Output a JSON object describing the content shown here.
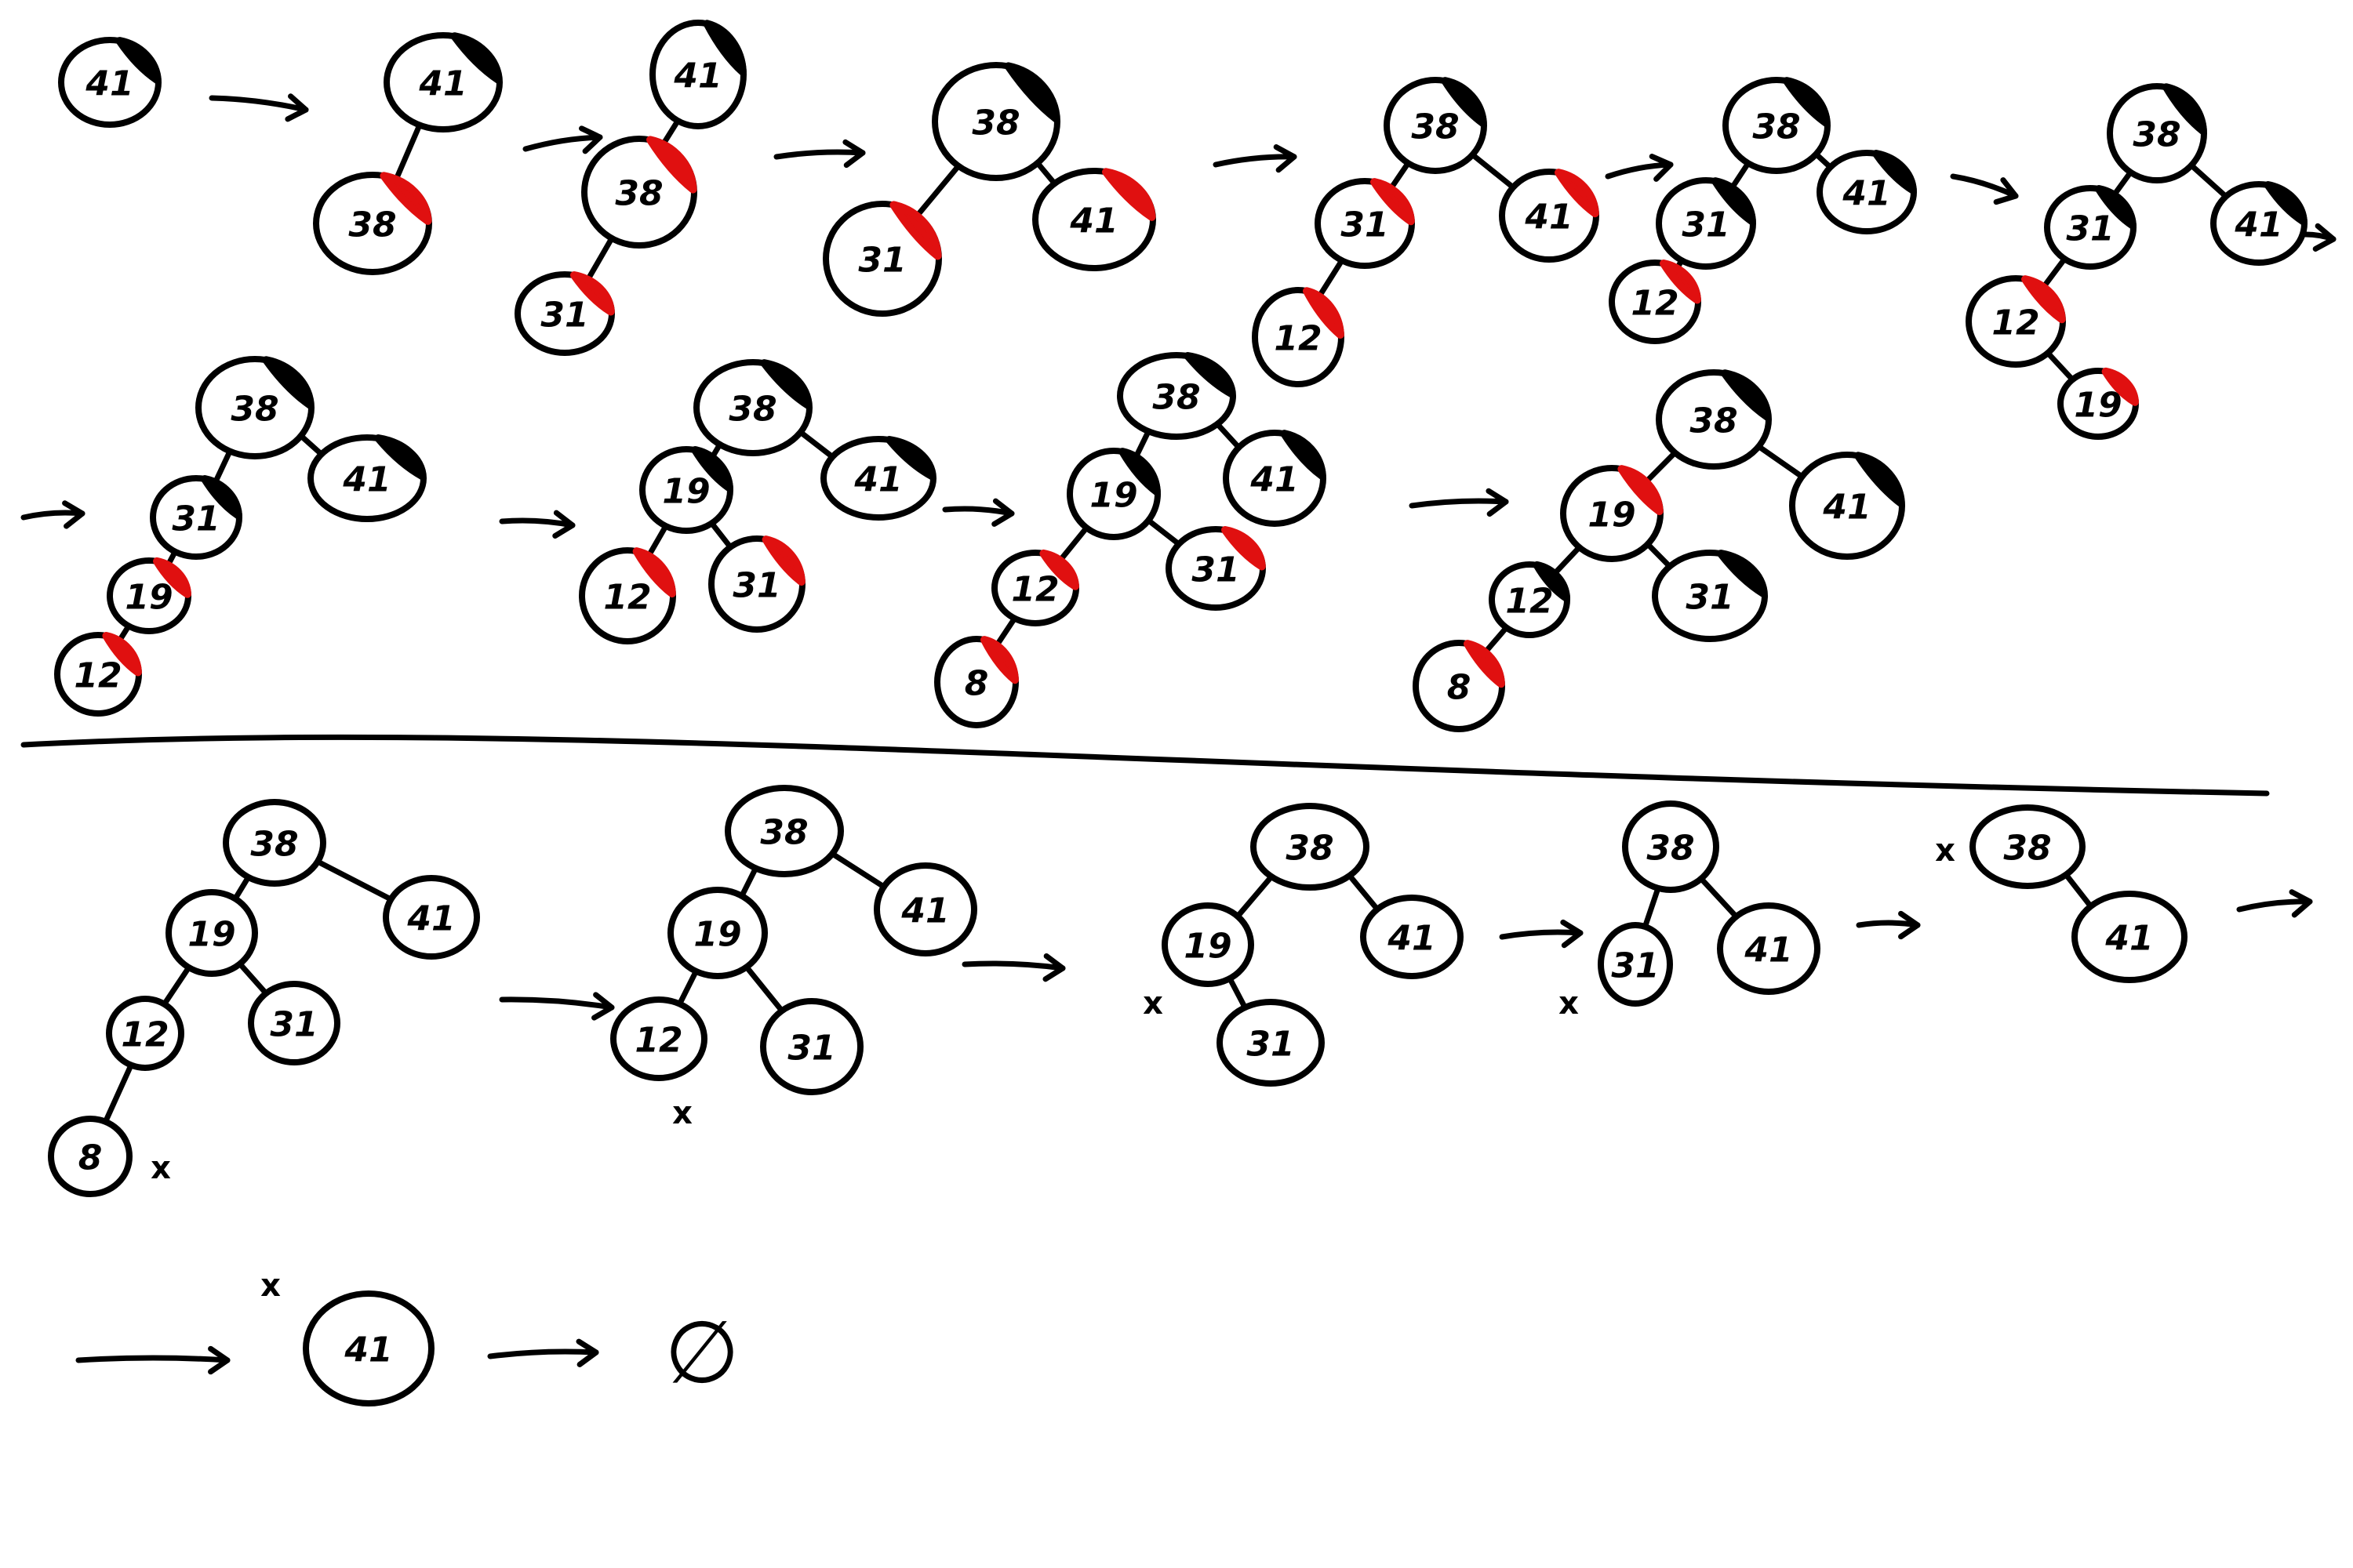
{
  "diagram": {
    "kind": "red-black tree insertion then deletion sequence",
    "colors": {
      "ink": "#000000",
      "red_mark": "#e01010",
      "black_mark": "#000000"
    },
    "empty_symbol": "∅",
    "deleted_mark": "x",
    "insertion_steps": [
      {
        "step": 1,
        "nodes": [
          {
            "key": "41",
            "color": "black"
          }
        ],
        "edges": []
      },
      {
        "step": 2,
        "nodes": [
          {
            "key": "41",
            "color": "black"
          },
          {
            "key": "38",
            "color": "red"
          }
        ],
        "edges": [
          [
            "41",
            "38"
          ]
        ]
      },
      {
        "step": 3,
        "nodes": [
          {
            "key": "41",
            "color": "black"
          },
          {
            "key": "38",
            "color": "red"
          },
          {
            "key": "31",
            "color": "red"
          }
        ],
        "edges": [
          [
            "41",
            "38"
          ],
          [
            "38",
            "31"
          ]
        ]
      },
      {
        "step": 4,
        "nodes": [
          {
            "key": "38",
            "color": "black"
          },
          {
            "key": "31",
            "color": "red"
          },
          {
            "key": "41",
            "color": "red"
          }
        ],
        "edges": [
          [
            "38",
            "31"
          ],
          [
            "38",
            "41"
          ]
        ]
      },
      {
        "step": 5,
        "nodes": [
          {
            "key": "38",
            "color": "black"
          },
          {
            "key": "31",
            "color": "red"
          },
          {
            "key": "41",
            "color": "red"
          },
          {
            "key": "12",
            "color": "red"
          }
        ],
        "edges": [
          [
            "38",
            "31"
          ],
          [
            "38",
            "41"
          ],
          [
            "31",
            "12"
          ]
        ]
      },
      {
        "step": 6,
        "nodes": [
          {
            "key": "38",
            "color": "black"
          },
          {
            "key": "31",
            "color": "black"
          },
          {
            "key": "41",
            "color": "black"
          },
          {
            "key": "12",
            "color": "red"
          }
        ],
        "edges": [
          [
            "38",
            "31"
          ],
          [
            "38",
            "41"
          ],
          [
            "31",
            "12"
          ]
        ]
      },
      {
        "step": 7,
        "nodes": [
          {
            "key": "38",
            "color": "black"
          },
          {
            "key": "31",
            "color": "black"
          },
          {
            "key": "41",
            "color": "black"
          },
          {
            "key": "12",
            "color": "red"
          },
          {
            "key": "19",
            "color": "red"
          }
        ],
        "edges": [
          [
            "38",
            "31"
          ],
          [
            "38",
            "41"
          ],
          [
            "31",
            "12"
          ],
          [
            "12",
            "19"
          ]
        ]
      },
      {
        "step": 8,
        "nodes": [
          {
            "key": "38",
            "color": "black"
          },
          {
            "key": "31",
            "color": "black"
          },
          {
            "key": "41",
            "color": "black"
          },
          {
            "key": "19",
            "color": "red"
          },
          {
            "key": "12",
            "color": "red"
          }
        ],
        "edges": [
          [
            "38",
            "31"
          ],
          [
            "38",
            "41"
          ],
          [
            "31",
            "19"
          ],
          [
            "19",
            "12"
          ]
        ]
      },
      {
        "step": 9,
        "nodes": [
          {
            "key": "38",
            "color": "black"
          },
          {
            "key": "19",
            "color": "black"
          },
          {
            "key": "41",
            "color": "black"
          },
          {
            "key": "12",
            "color": "red"
          },
          {
            "key": "31",
            "color": "red"
          }
        ],
        "edges": [
          [
            "38",
            "19"
          ],
          [
            "38",
            "41"
          ],
          [
            "19",
            "12"
          ],
          [
            "19",
            "31"
          ]
        ]
      },
      {
        "step": 10,
        "nodes": [
          {
            "key": "38",
            "color": "black"
          },
          {
            "key": "19",
            "color": "black"
          },
          {
            "key": "41",
            "color": "black"
          },
          {
            "key": "12",
            "color": "red"
          },
          {
            "key": "31",
            "color": "red"
          },
          {
            "key": "8",
            "color": "red"
          }
        ],
        "edges": [
          [
            "38",
            "19"
          ],
          [
            "38",
            "41"
          ],
          [
            "19",
            "12"
          ],
          [
            "19",
            "31"
          ],
          [
            "12",
            "8"
          ]
        ]
      },
      {
        "step": 11,
        "nodes": [
          {
            "key": "38",
            "color": "black"
          },
          {
            "key": "19",
            "color": "red"
          },
          {
            "key": "41",
            "color": "black"
          },
          {
            "key": "12",
            "color": "black"
          },
          {
            "key": "31",
            "color": "black"
          },
          {
            "key": "8",
            "color": "red"
          }
        ],
        "edges": [
          [
            "38",
            "19"
          ],
          [
            "38",
            "41"
          ],
          [
            "19",
            "12"
          ],
          [
            "19",
            "31"
          ],
          [
            "12",
            "8"
          ]
        ]
      }
    ],
    "deletion_steps": [
      {
        "step": 12,
        "deleted": "8",
        "nodes": [
          {
            "key": "38"
          },
          {
            "key": "19"
          },
          {
            "key": "41"
          },
          {
            "key": "12"
          },
          {
            "key": "31"
          },
          {
            "key": "8"
          }
        ],
        "edges": [
          [
            "38",
            "19"
          ],
          [
            "38",
            "41"
          ],
          [
            "19",
            "12"
          ],
          [
            "19",
            "31"
          ],
          [
            "12",
            "8"
          ]
        ]
      },
      {
        "step": 13,
        "deleted": "12",
        "nodes": [
          {
            "key": "38"
          },
          {
            "key": "19"
          },
          {
            "key": "41"
          },
          {
            "key": "12"
          },
          {
            "key": "31"
          }
        ],
        "edges": [
          [
            "38",
            "19"
          ],
          [
            "38",
            "41"
          ],
          [
            "19",
            "12"
          ],
          [
            "19",
            "31"
          ]
        ]
      },
      {
        "step": 14,
        "deleted": "19",
        "nodes": [
          {
            "key": "38"
          },
          {
            "key": "19"
          },
          {
            "key": "41"
          },
          {
            "key": "31"
          }
        ],
        "edges": [
          [
            "38",
            "19"
          ],
          [
            "38",
            "41"
          ],
          [
            "19",
            "31"
          ]
        ]
      },
      {
        "step": 15,
        "deleted": "31",
        "nodes": [
          {
            "key": "38"
          },
          {
            "key": "31"
          },
          {
            "key": "41"
          }
        ],
        "edges": [
          [
            "38",
            "31"
          ],
          [
            "38",
            "41"
          ]
        ]
      },
      {
        "step": 16,
        "deleted": "38",
        "nodes": [
          {
            "key": "38"
          },
          {
            "key": "41"
          }
        ],
        "edges": [
          [
            "38",
            "41"
          ]
        ]
      },
      {
        "step": 17,
        "deleted": "41",
        "nodes": [
          {
            "key": "41"
          }
        ],
        "edges": []
      },
      {
        "step": 18,
        "result": "∅"
      }
    ]
  }
}
